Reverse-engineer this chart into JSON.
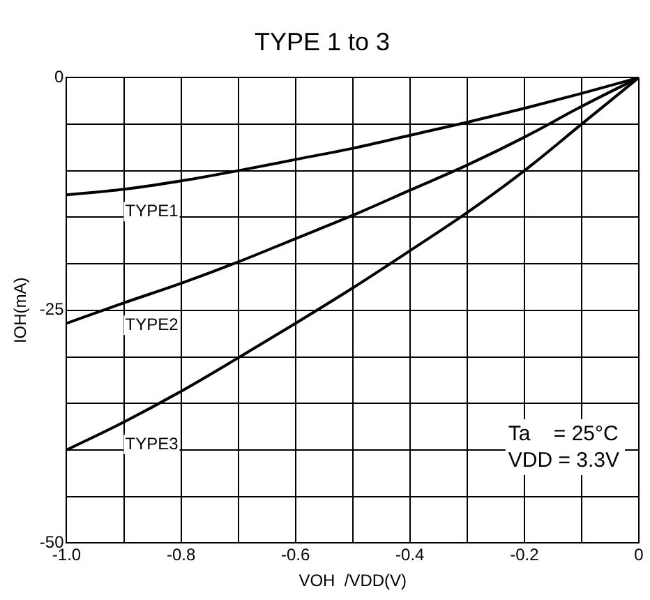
{
  "chart_data": {
    "type": "line",
    "title": "TYPE 1 to 3",
    "xlabel": "VOH  /VDD(V)",
    "ylabel": "IOH(mA)",
    "x": [
      -1.0,
      -0.9,
      -0.8,
      -0.7,
      -0.6,
      -0.5,
      -0.4,
      -0.3,
      -0.2,
      -0.1,
      0
    ],
    "series": [
      {
        "name": "TYPE1",
        "color": "#000000",
        "values": [
          -12.6,
          -12.0,
          -11.1,
          -10.0,
          -8.8,
          -7.6,
          -6.2,
          -4.8,
          -3.3,
          -1.7,
          0
        ]
      },
      {
        "name": "TYPE2",
        "color": "#000000",
        "values": [
          -26.4,
          -24.2,
          -22.1,
          -19.8,
          -17.3,
          -14.8,
          -12.1,
          -9.4,
          -6.4,
          -3.1,
          0
        ]
      },
      {
        "name": "TYPE3",
        "color": "#000000",
        "values": [
          -40.0,
          -37.0,
          -33.7,
          -30.1,
          -26.4,
          -22.6,
          -18.6,
          -14.5,
          -10.0,
          -5.0,
          0
        ]
      }
    ],
    "xlim": [
      -1.0,
      0
    ],
    "xticks": [
      {
        "value": -1.0,
        "label": "-1.0"
      },
      {
        "value": -0.9,
        "label": null
      },
      {
        "value": -0.8,
        "label": "-0.8"
      },
      {
        "value": -0.7,
        "label": null
      },
      {
        "value": -0.6,
        "label": "-0.6"
      },
      {
        "value": -0.5,
        "label": null
      },
      {
        "value": -0.4,
        "label": "-0.4"
      },
      {
        "value": -0.3,
        "label": null
      },
      {
        "value": -0.2,
        "label": "-0.2"
      },
      {
        "value": -0.1,
        "label": null
      },
      0
    ],
    "ylim": [
      -50,
      0
    ],
    "yticks": [
      -50,
      {
        "value": -45,
        "label": null
      },
      {
        "value": -40,
        "label": null
      },
      {
        "value": -35,
        "label": null
      },
      {
        "value": -30,
        "label": null
      },
      -25,
      {
        "value": -20,
        "label": null
      },
      {
        "value": -15,
        "label": null
      },
      {
        "value": -10,
        "label": null
      },
      {
        "value": -5,
        "label": null
      },
      0
    ],
    "grid": true,
    "legend": false,
    "marker": "none",
    "line_style": "solid",
    "annotations": [
      "Ta    = 25°C",
      "VDD = 3.3V"
    ]
  }
}
